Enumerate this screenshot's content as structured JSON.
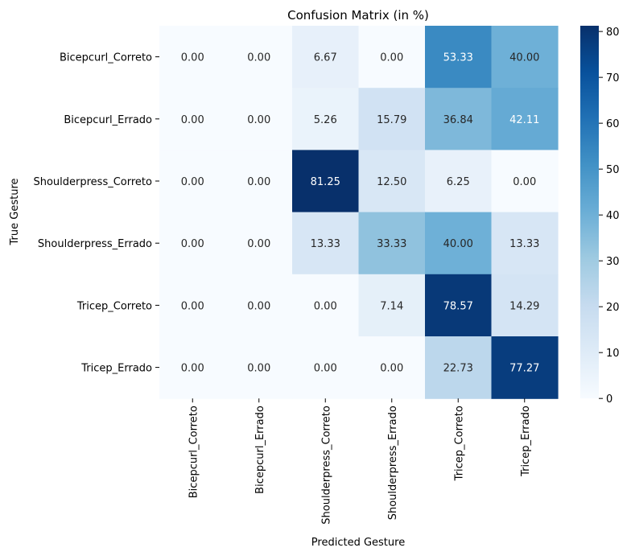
{
  "chart_data": {
    "type": "heatmap",
    "title": "Confusion Matrix (in %)",
    "xlabel": "Predicted Gesture",
    "ylabel": "True Gesture",
    "row_labels": [
      "Bicepcurl_Correto",
      "Bicepcurl_Errado",
      "Shoulderpress_Correto",
      "Shoulderpress_Errado",
      "Tricep_Correto",
      "Tricep_Errado"
    ],
    "col_labels": [
      "Bicepcurl_Correto",
      "Bicepcurl_Errado",
      "Shoulderpress_Correto",
      "Shoulderpress_Errado",
      "Tricep_Correto",
      "Tricep_Errado"
    ],
    "values": [
      [
        0.0,
        0.0,
        6.67,
        0.0,
        53.33,
        40.0
      ],
      [
        0.0,
        0.0,
        5.26,
        15.79,
        36.84,
        42.11
      ],
      [
        0.0,
        0.0,
        81.25,
        12.5,
        6.25,
        0.0
      ],
      [
        0.0,
        0.0,
        13.33,
        33.33,
        40.0,
        13.33
      ],
      [
        0.0,
        0.0,
        0.0,
        7.14,
        78.57,
        14.29
      ],
      [
        0.0,
        0.0,
        0.0,
        0.0,
        22.73,
        77.27
      ]
    ],
    "value_format": "0.00",
    "colormap": "Blues",
    "colorbar": {
      "range": [
        0,
        81.25
      ],
      "ticks": [
        0,
        10,
        20,
        30,
        40,
        50,
        60,
        70,
        80
      ]
    }
  }
}
